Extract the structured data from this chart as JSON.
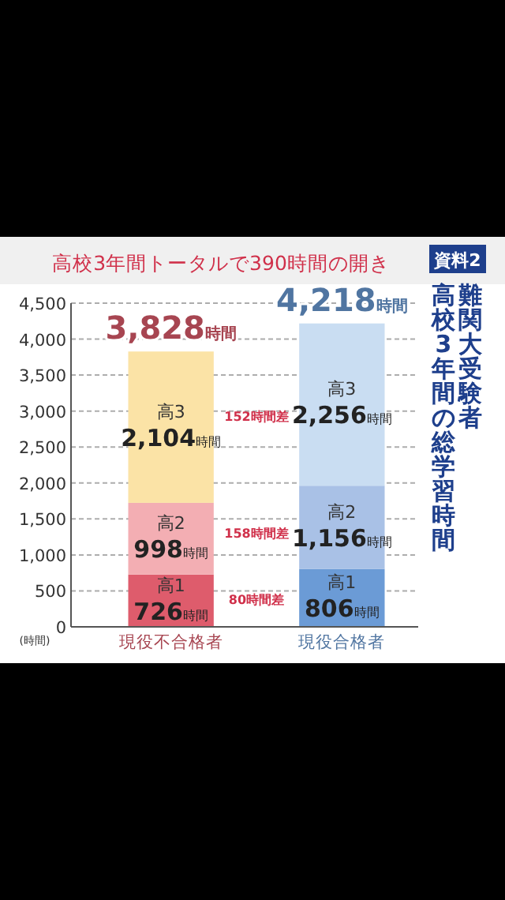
{
  "chart_data": {
    "type": "bar",
    "stacked": true,
    "title": "高校3年間トータルで390時間の開き",
    "subtitle": "難関大受験者",
    "ylabel": "(時間)",
    "categories": [
      "現役不合格者",
      "現役合格者"
    ],
    "series": [
      {
        "name": "高1",
        "colors": [
          "#de5c6c",
          "#6b9bd6"
        ],
        "values": [
          726,
          806
        ],
        "value_labels": [
          "726時間",
          "806時間"
        ]
      },
      {
        "name": "高2",
        "colors": [
          "#f3aeb3",
          "#a9c1e6"
        ],
        "values": [
          998,
          1156
        ],
        "value_labels": [
          "998時間",
          "1,156時間"
        ]
      },
      {
        "name": "高3",
        "colors": [
          "#fbe3a6",
          "#c9ddf2"
        ],
        "values": [
          2104,
          2256
        ],
        "value_labels": [
          "2,104時間",
          "2,256時間"
        ]
      }
    ],
    "totals": [
      "3,828時間",
      "4,218時間"
    ],
    "ylim": [
      0,
      4500
    ],
    "yticks": [
      0,
      500,
      {
        "value": 1000,
        "label": "1,000"
      },
      {
        "value": 1500,
        "label": "1,500"
      },
      {
        "value": 2000,
        "label": "2,000"
      },
      {
        "value": 2500,
        "label": "2,500"
      },
      {
        "value": 3000,
        "label": "3,000"
      },
      {
        "value": 3500,
        "label": "3,500"
      },
      {
        "value": 4000,
        "label": "4,000"
      },
      {
        "value": 4500,
        "label": "4,500"
      }
    ],
    "grid": "y",
    "annotations": [
      "80時間差",
      "158時間差",
      "152時間差",
      "資料2",
      "高校3年間の総学習時間"
    ]
  }
}
